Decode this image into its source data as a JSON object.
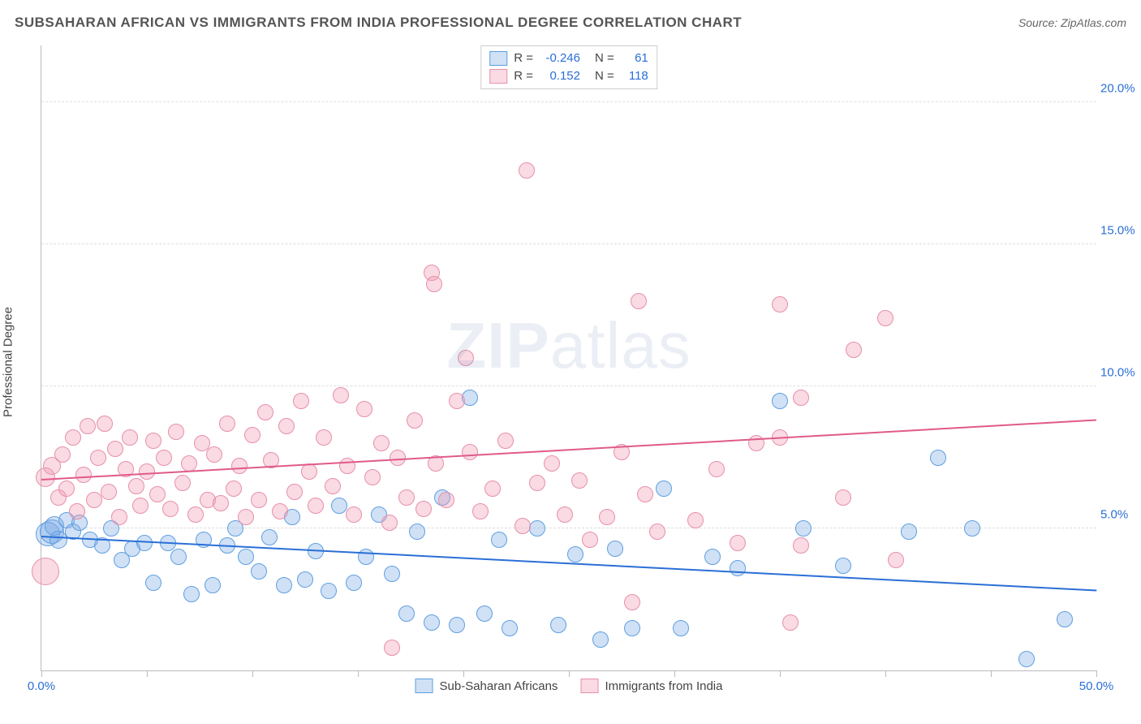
{
  "header": {
    "title": "SUBSAHARAN AFRICAN VS IMMIGRANTS FROM INDIA PROFESSIONAL DEGREE CORRELATION CHART",
    "source": "Source: ZipAtlas.com"
  },
  "chart": {
    "type": "scatter",
    "ylabel": "Professional Degree",
    "xlim": [
      0,
      50
    ],
    "ylim": [
      0,
      22
    ],
    "x_ticks": [
      0,
      5,
      10,
      15,
      20,
      25,
      30,
      35,
      40,
      45,
      50
    ],
    "x_tick_labels": {
      "0": "0.0%",
      "50": "50.0%"
    },
    "y_gridlines": [
      5,
      10,
      15,
      20
    ],
    "y_tick_labels": {
      "5": "5.0%",
      "10": "10.0%",
      "15": "15.0%",
      "20": "20.0%"
    },
    "background_color": "#ffffff",
    "grid_color": "#dddddd",
    "axis_color": "#bbbbbb",
    "tick_label_color": "#2a6fd6",
    "marker_radius": 9,
    "marker_stroke_width": 1.5,
    "regline_width": 2,
    "watermark": "ZIPatlas",
    "series": [
      {
        "name": "Sub-Saharan Africans",
        "fill": "rgba(120,170,230,0.35)",
        "stroke": "#5f9fe0",
        "line_color": "#2a6fd6",
        "R": "-0.246",
        "N": "61",
        "regression": {
          "x1": 0,
          "y1": 4.7,
          "x2": 50,
          "y2": 2.8
        },
        "points": [
          [
            0.3,
            4.8,
            14
          ],
          [
            0.5,
            4.9,
            14
          ],
          [
            0.6,
            5.1,
            11
          ],
          [
            0.8,
            4.6,
            10
          ],
          [
            1.2,
            5.3,
            9
          ],
          [
            1.5,
            4.9,
            9
          ],
          [
            1.8,
            5.2,
            9
          ],
          [
            2.3,
            4.6,
            9
          ],
          [
            2.9,
            4.4,
            9
          ],
          [
            3.3,
            5.0,
            9
          ],
          [
            3.8,
            3.9,
            9
          ],
          [
            4.3,
            4.3,
            9
          ],
          [
            4.9,
            4.5,
            9
          ],
          [
            5.3,
            3.1,
            9
          ],
          [
            6.0,
            4.5,
            9
          ],
          [
            6.5,
            4.0,
            9
          ],
          [
            7.1,
            2.7,
            9
          ],
          [
            7.7,
            4.6,
            9
          ],
          [
            8.1,
            3.0,
            9
          ],
          [
            8.8,
            4.4,
            9
          ],
          [
            9.2,
            5.0,
            9
          ],
          [
            9.7,
            4.0,
            9
          ],
          [
            10.3,
            3.5,
            9
          ],
          [
            10.8,
            4.7,
            9
          ],
          [
            11.5,
            3.0,
            9
          ],
          [
            11.9,
            5.4,
            9
          ],
          [
            12.5,
            3.2,
            9
          ],
          [
            13.0,
            4.2,
            9
          ],
          [
            13.6,
            2.8,
            9
          ],
          [
            14.1,
            5.8,
            9
          ],
          [
            14.8,
            3.1,
            9
          ],
          [
            15.4,
            4.0,
            9
          ],
          [
            16.0,
            5.5,
            9
          ],
          [
            16.6,
            3.4,
            9
          ],
          [
            17.3,
            2.0,
            9
          ],
          [
            17.8,
            4.9,
            9
          ],
          [
            18.5,
            1.7,
            9
          ],
          [
            19.0,
            6.1,
            9
          ],
          [
            19.7,
            1.6,
            9
          ],
          [
            20.3,
            9.6,
            9
          ],
          [
            21.0,
            2.0,
            9
          ],
          [
            21.7,
            4.6,
            9
          ],
          [
            22.2,
            1.5,
            9
          ],
          [
            23.5,
            5.0,
            9
          ],
          [
            24.5,
            1.6,
            9
          ],
          [
            25.3,
            4.1,
            9
          ],
          [
            26.5,
            1.1,
            9
          ],
          [
            27.2,
            4.3,
            9
          ],
          [
            28.0,
            1.5,
            9
          ],
          [
            29.5,
            6.4,
            9
          ],
          [
            30.3,
            1.5,
            9
          ],
          [
            31.8,
            4.0,
            9
          ],
          [
            33.0,
            3.6,
            9
          ],
          [
            35.0,
            9.5,
            9
          ],
          [
            36.1,
            5.0,
            9
          ],
          [
            38.0,
            3.7,
            9
          ],
          [
            41.1,
            4.9,
            9
          ],
          [
            42.5,
            7.5,
            9
          ],
          [
            44.1,
            5.0,
            9
          ],
          [
            46.7,
            0.4,
            9
          ],
          [
            48.5,
            1.8,
            9
          ]
        ]
      },
      {
        "name": "Immigrants from India",
        "fill": "rgba(240,150,175,0.35)",
        "stroke": "#e690aa",
        "line_color": "#e05a8a",
        "R": "0.152",
        "N": "118",
        "regression": {
          "x1": 0,
          "y1": 6.7,
          "x2": 50,
          "y2": 8.8
        },
        "points": [
          [
            0.2,
            6.8,
            11
          ],
          [
            0.2,
            3.5,
            16
          ],
          [
            0.5,
            7.2,
            10
          ],
          [
            0.8,
            6.1,
            9
          ],
          [
            1.0,
            7.6,
            9
          ],
          [
            1.2,
            6.4,
            9
          ],
          [
            1.5,
            8.2,
            9
          ],
          [
            1.7,
            5.6,
            9
          ],
          [
            2.0,
            6.9,
            9
          ],
          [
            2.2,
            8.6,
            9
          ],
          [
            2.5,
            6.0,
            9
          ],
          [
            2.7,
            7.5,
            9
          ],
          [
            3.0,
            8.7,
            9
          ],
          [
            3.2,
            6.3,
            9
          ],
          [
            3.5,
            7.8,
            9
          ],
          [
            3.7,
            5.4,
            9
          ],
          [
            4.0,
            7.1,
            9
          ],
          [
            4.2,
            8.2,
            9
          ],
          [
            4.5,
            6.5,
            9
          ],
          [
            4.7,
            5.8,
            9
          ],
          [
            5.0,
            7.0,
            9
          ],
          [
            5.3,
            8.1,
            9
          ],
          [
            5.5,
            6.2,
            9
          ],
          [
            5.8,
            7.5,
            9
          ],
          [
            6.1,
            5.7,
            9
          ],
          [
            6.4,
            8.4,
            9
          ],
          [
            6.7,
            6.6,
            9
          ],
          [
            7.0,
            7.3,
            9
          ],
          [
            7.3,
            5.5,
            9
          ],
          [
            7.6,
            8.0,
            9
          ],
          [
            7.9,
            6.0,
            9
          ],
          [
            8.2,
            7.6,
            9
          ],
          [
            8.5,
            5.9,
            9
          ],
          [
            8.8,
            8.7,
            9
          ],
          [
            9.1,
            6.4,
            9
          ],
          [
            9.4,
            7.2,
            9
          ],
          [
            9.7,
            5.4,
            9
          ],
          [
            10.0,
            8.3,
            9
          ],
          [
            10.3,
            6.0,
            9
          ],
          [
            10.6,
            9.1,
            9
          ],
          [
            10.9,
            7.4,
            9
          ],
          [
            11.3,
            5.6,
            9
          ],
          [
            11.6,
            8.6,
            9
          ],
          [
            12.0,
            6.3,
            9
          ],
          [
            12.3,
            9.5,
            9
          ],
          [
            12.7,
            7.0,
            9
          ],
          [
            13.0,
            5.8,
            9
          ],
          [
            13.4,
            8.2,
            9
          ],
          [
            13.8,
            6.5,
            9
          ],
          [
            14.2,
            9.7,
            9
          ],
          [
            14.5,
            7.2,
            9
          ],
          [
            14.8,
            5.5,
            9
          ],
          [
            15.3,
            9.2,
            9
          ],
          [
            15.7,
            6.8,
            9
          ],
          [
            16.1,
            8.0,
            9
          ],
          [
            16.5,
            5.2,
            9
          ],
          [
            16.6,
            0.8,
            9
          ],
          [
            16.9,
            7.5,
            9
          ],
          [
            17.3,
            6.1,
            9
          ],
          [
            17.7,
            8.8,
            9
          ],
          [
            18.1,
            5.7,
            9
          ],
          [
            18.5,
            14.0,
            9
          ],
          [
            18.6,
            13.6,
            9
          ],
          [
            18.7,
            7.3,
            9
          ],
          [
            19.2,
            6.0,
            9
          ],
          [
            19.7,
            9.5,
            9
          ],
          [
            20.1,
            11.0,
            9
          ],
          [
            20.3,
            7.7,
            9
          ],
          [
            20.8,
            5.6,
            9
          ],
          [
            21.4,
            6.4,
            9
          ],
          [
            22.0,
            8.1,
            9
          ],
          [
            22.8,
            5.1,
            9
          ],
          [
            23.0,
            17.6,
            9
          ],
          [
            23.5,
            6.6,
            9
          ],
          [
            24.2,
            7.3,
            9
          ],
          [
            24.8,
            5.5,
            9
          ],
          [
            25.5,
            6.7,
            9
          ],
          [
            26.0,
            4.6,
            9
          ],
          [
            26.8,
            5.4,
            9
          ],
          [
            27.5,
            7.7,
            9
          ],
          [
            28.0,
            2.4,
            9
          ],
          [
            28.3,
            13.0,
            9
          ],
          [
            28.6,
            6.2,
            9
          ],
          [
            29.2,
            4.9,
            9
          ],
          [
            31.0,
            5.3,
            9
          ],
          [
            32.0,
            7.1,
            9
          ],
          [
            33.0,
            4.5,
            9
          ],
          [
            33.9,
            8.0,
            9
          ],
          [
            35.0,
            12.9,
            9
          ],
          [
            35.0,
            8.2,
            9
          ],
          [
            35.5,
            1.7,
            9
          ],
          [
            36.0,
            9.6,
            9
          ],
          [
            36.0,
            4.4,
            9
          ],
          [
            38.0,
            6.1,
            9
          ],
          [
            38.5,
            11.3,
            9
          ],
          [
            40.0,
            12.4,
            9
          ],
          [
            40.5,
            3.9,
            9
          ]
        ]
      }
    ],
    "legend_bottom": [
      {
        "swatch_fill": "rgba(120,170,230,0.35)",
        "swatch_stroke": "#5f9fe0",
        "label": "Sub-Saharan Africans"
      },
      {
        "swatch_fill": "rgba(240,150,175,0.35)",
        "swatch_stroke": "#e690aa",
        "label": "Immigrants from India"
      }
    ]
  }
}
